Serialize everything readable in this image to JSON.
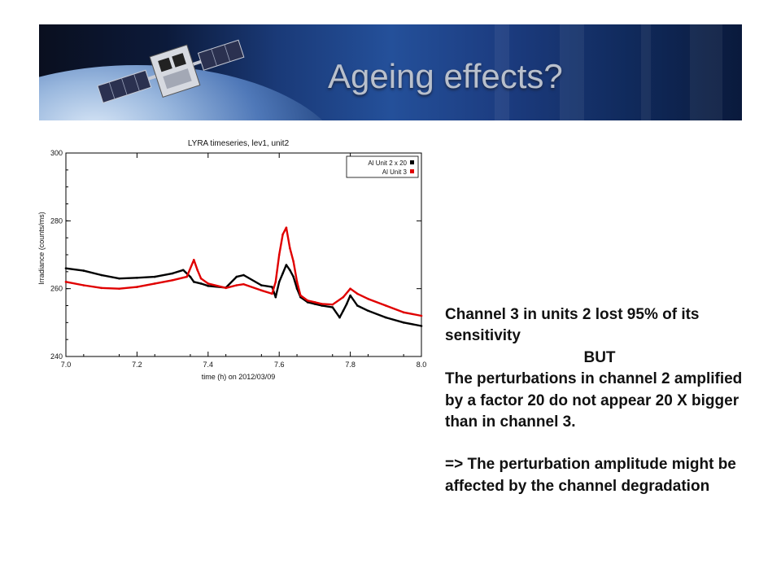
{
  "slide": {
    "title": "Ageing effects?",
    "text": {
      "line1": "Channel 3 in units 2 lost 95% of its sensitivity",
      "but": "BUT",
      "line2": "The perturbations in channel 2 amplified by a factor 20 do not appear 20 X bigger than in channel 3.",
      "line3": "=> The perturbation amplitude might be affected by the channel degradation"
    }
  },
  "chart_data": {
    "type": "scatter",
    "title": "LYRA timeseries, lev1, unit2",
    "xlabel": "time (h) on 2012/03/09",
    "ylabel": "Irradiance (counts/ms)",
    "xlim": [
      7.0,
      8.0
    ],
    "ylim": [
      240,
      300
    ],
    "xticks": [
      "7.0",
      "7.2",
      "7.4",
      "7.6",
      "7.8",
      "8.0"
    ],
    "yticks": [
      "240",
      "260",
      "280",
      "300"
    ],
    "legend_position": "top-right",
    "series": [
      {
        "name": "Al Unit 2 x 20",
        "color": "#000000",
        "x": [
          7.0,
          7.05,
          7.1,
          7.15,
          7.2,
          7.25,
          7.3,
          7.33,
          7.35,
          7.36,
          7.38,
          7.4,
          7.45,
          7.48,
          7.5,
          7.55,
          7.58,
          7.59,
          7.6,
          7.61,
          7.62,
          7.63,
          7.64,
          7.65,
          7.66,
          7.68,
          7.7,
          7.72,
          7.75,
          7.77,
          7.78,
          7.79,
          7.8,
          7.82,
          7.85,
          7.9,
          7.95,
          8.0
        ],
        "values": [
          266,
          265.3,
          264,
          263,
          263.2,
          263.5,
          264.5,
          265.5,
          263.5,
          262,
          261.5,
          260.8,
          260.3,
          263.5,
          264,
          261,
          260.5,
          257.5,
          262,
          264.5,
          267,
          265.5,
          263.5,
          260,
          257.5,
          256,
          255.5,
          255,
          254.5,
          251.5,
          253.5,
          255.5,
          258,
          255,
          253.5,
          251.5,
          250,
          249
        ]
      },
      {
        "name": "Al Unit 3",
        "color": "#e00000",
        "x": [
          7.0,
          7.05,
          7.1,
          7.15,
          7.2,
          7.25,
          7.3,
          7.34,
          7.36,
          7.37,
          7.38,
          7.4,
          7.45,
          7.48,
          7.5,
          7.55,
          7.58,
          7.59,
          7.6,
          7.61,
          7.62,
          7.63,
          7.64,
          7.65,
          7.66,
          7.68,
          7.7,
          7.72,
          7.75,
          7.78,
          7.8,
          7.82,
          7.85,
          7.9,
          7.95,
          8.0
        ],
        "values": [
          262,
          261,
          260.2,
          260,
          260.5,
          261.5,
          262.5,
          263.5,
          268.5,
          265.5,
          263,
          261.5,
          260.2,
          261,
          261.3,
          259.5,
          258.5,
          262,
          270,
          276,
          278,
          272,
          268,
          262,
          258,
          256.5,
          256,
          255.5,
          255.3,
          257.5,
          260,
          258.5,
          257,
          255,
          253,
          252
        ]
      }
    ]
  }
}
